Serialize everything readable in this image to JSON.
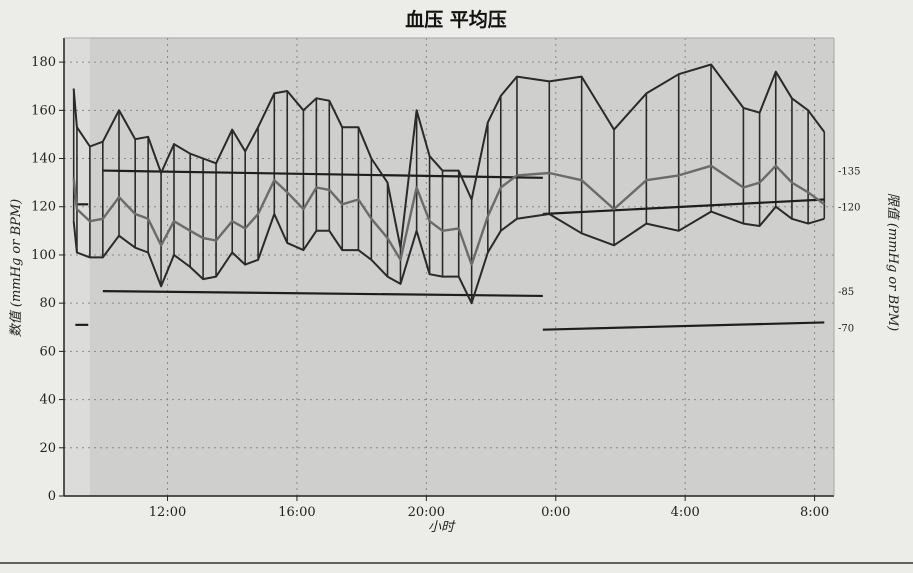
{
  "chart_data": {
    "type": "line",
    "title": "血压 平均压",
    "xlabel": "小时",
    "ylabel": "数值 (mmHg or BPM)",
    "ylabel_right": "限值 (mmHg or BPM)",
    "ylim": [
      0,
      190
    ],
    "xlim": [
      8.8,
      32.6
    ],
    "grid": true,
    "y_ticks": [
      0,
      20,
      40,
      60,
      80,
      100,
      120,
      140,
      160,
      180
    ],
    "x_ticks": [
      {
        "x": 12,
        "label": "12:00"
      },
      {
        "x": 16,
        "label": "16:00"
      },
      {
        "x": 20,
        "label": "20:00"
      },
      {
        "x": 24,
        "label": "0:00"
      },
      {
        "x": 28,
        "label": "4:00"
      },
      {
        "x": 32,
        "label": "8:00"
      }
    ],
    "right_ticks": [
      {
        "value": 135,
        "label": "-135"
      },
      {
        "value": 120,
        "label": "-120"
      },
      {
        "value": 85,
        "label": "-85"
      },
      {
        "value": 70,
        "label": "-70"
      }
    ],
    "x": [
      9.1,
      9.2,
      9.6,
      10.0,
      10.5,
      11.0,
      11.4,
      11.8,
      12.2,
      12.7,
      13.1,
      13.5,
      14.0,
      14.4,
      14.8,
      15.3,
      15.7,
      16.2,
      16.6,
      17.0,
      17.4,
      17.9,
      18.3,
      18.8,
      19.2,
      19.7,
      20.1,
      20.5,
      21.0,
      21.4,
      21.9,
      22.3,
      22.8,
      23.8,
      24.8,
      25.8,
      26.8,
      27.8,
      28.8,
      29.8,
      30.3,
      30.8,
      31.3,
      31.8,
      32.3
    ],
    "series": [
      {
        "values": [
          169,
          153,
          145,
          147,
          160,
          148,
          149,
          134,
          146,
          142,
          140,
          138,
          152,
          143,
          153,
          167,
          168,
          160,
          165,
          164,
          153,
          153,
          140,
          130,
          103,
          160,
          141,
          135,
          135,
          123,
          155,
          166,
          174,
          172,
          174,
          152,
          167,
          175,
          179,
          161,
          159,
          176,
          165,
          160,
          151
        ]
      },
      {
        "values": [
          132,
          119,
          114,
          115,
          124,
          117,
          115,
          104,
          114,
          110,
          107,
          106,
          114,
          111,
          117,
          131,
          126,
          119,
          128,
          127,
          121,
          123,
          115,
          107,
          98,
          128,
          114,
          110,
          111,
          96,
          116,
          128,
          133,
          134,
          131,
          119,
          131,
          133,
          137,
          128,
          130,
          137,
          130,
          126,
          121
        ]
      },
      {
        "values": [
          114,
          101,
          99,
          99,
          108,
          103,
          101,
          87,
          100,
          95,
          90,
          91,
          101,
          96,
          98,
          117,
          105,
          102,
          110,
          110,
          102,
          102,
          98,
          91,
          88,
          110,
          92,
          91,
          91,
          80,
          101,
          110,
          115,
          117,
          109,
          104,
          113,
          110,
          118,
          113,
          112,
          120,
          115,
          113,
          115
        ]
      }
    ],
    "limit_lines": [
      {
        "x": [
          9.15,
          9.55
        ],
        "y": [
          121,
          121
        ]
      },
      {
        "x": [
          9.15,
          9.55
        ],
        "y": [
          71,
          71
        ]
      },
      {
        "x": [
          10.0,
          23.6
        ],
        "y": [
          135,
          132
        ]
      },
      {
        "x": [
          10.0,
          23.6
        ],
        "y": [
          85,
          83
        ]
      },
      {
        "x": [
          23.6,
          32.3
        ],
        "y": [
          117,
          123
        ]
      },
      {
        "x": [
          23.6,
          32.3
        ],
        "y": [
          69,
          72
        ]
      }
    ],
    "colors": {
      "envelope": "#2a2a2a",
      "mean": "#6b6b6b",
      "limit": "#1e1e1e",
      "plot_bg": "#cfcfce",
      "grid": "#8a8a8a"
    }
  }
}
